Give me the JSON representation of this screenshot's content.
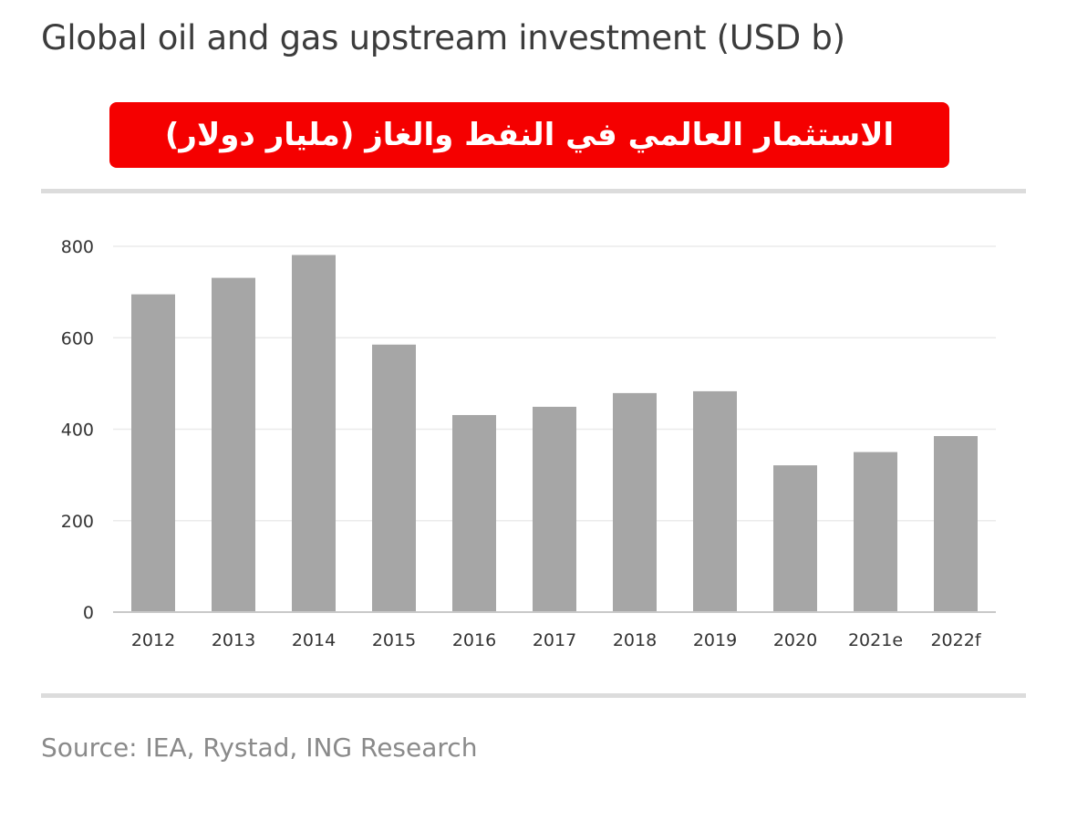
{
  "title": "Global oil and gas upstream investment (USD b)",
  "banner_text": "الاستثمار العالمي في النفط  والغاز (مليار دولار)",
  "source": "Source: IEA, Rystad, ING Research",
  "colors": {
    "banner": "#f50000",
    "bar": "#a6a6a6",
    "rule": "#dcdcdc"
  },
  "chart_data": {
    "type": "bar",
    "categories": [
      "2012",
      "2013",
      "2014",
      "2015",
      "2016",
      "2017",
      "2018",
      "2019",
      "2020",
      "2021e",
      "2022f"
    ],
    "values": [
      695,
      731,
      781,
      585,
      431,
      449,
      479,
      483,
      321,
      350,
      385
    ],
    "yticks": [
      0,
      200,
      400,
      600,
      800
    ],
    "ylim": [
      0,
      800
    ],
    "grid": true,
    "legend": "none"
  }
}
